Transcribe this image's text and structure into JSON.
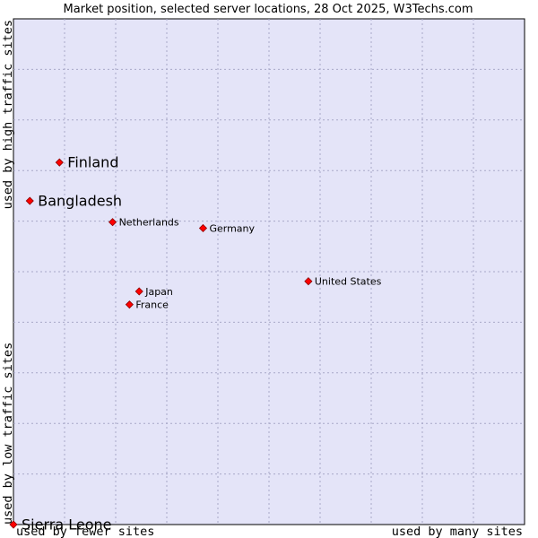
{
  "chart_data": {
    "type": "scatter",
    "title": "Market position, selected server locations, 28 Oct 2025, W3Techs.com",
    "xlabel_low": "used by fewer sites",
    "xlabel_high": "used by many sites",
    "ylabel_low": "used by low traffic sites",
    "ylabel_high": "used by high traffic sites",
    "xlim": [
      0,
      100
    ],
    "ylim": [
      0,
      100
    ],
    "grid": true,
    "points": [
      {
        "name": "Finland",
        "x": 9.0,
        "y": 71.6,
        "emphasis": true
      },
      {
        "name": "Bangladesh",
        "x": 3.2,
        "y": 64.0,
        "emphasis": true
      },
      {
        "name": "Netherlands",
        "x": 19.4,
        "y": 59.8,
        "emphasis": false
      },
      {
        "name": "Germany",
        "x": 37.1,
        "y": 58.6,
        "emphasis": false
      },
      {
        "name": "United States",
        "x": 57.7,
        "y": 48.1,
        "emphasis": false
      },
      {
        "name": "Japan",
        "x": 24.6,
        "y": 46.1,
        "emphasis": false
      },
      {
        "name": "France",
        "x": 22.7,
        "y": 43.5,
        "emphasis": false
      },
      {
        "name": "Sierra Leone",
        "x": 0.0,
        "y": 0.0,
        "emphasis": true
      }
    ]
  },
  "colors": {
    "marker": "#ff0000",
    "marker_stroke": "#8b0000",
    "plot_background": "#e4e4f8"
  }
}
